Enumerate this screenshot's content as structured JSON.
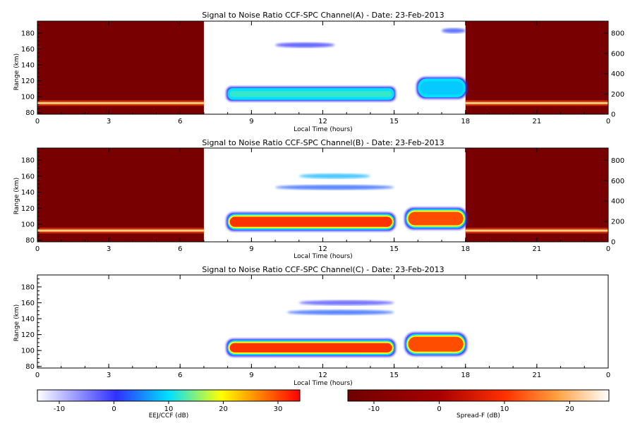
{
  "chart_data": [
    {
      "type": "heatmap",
      "title": "Signal to Noise Ratio CCF-SPC Channel(A) - Date: 23-Feb-2013",
      "xlabel": "Local Time (hours)",
      "ylabel": "Range (km)",
      "xlim": [
        0,
        24
      ],
      "ylim": [
        78,
        195
      ],
      "x_ticks": [
        "0",
        "3",
        "6",
        "9",
        "12",
        "15",
        "18",
        "21",
        "0"
      ],
      "y_ticks": [
        "80",
        "100",
        "120",
        "140",
        "160",
        "180"
      ],
      "right_ylim": [
        0,
        920
      ],
      "right_ticks": [
        "0",
        "200",
        "400",
        "600",
        "800"
      ],
      "spread_f_window_hours": [
        [
          0,
          7
        ],
        [
          18,
          24
        ]
      ],
      "eej_window_hours": [
        7,
        18
      ],
      "features": [
        {
          "kind": "spread-f-layer",
          "x": [
            0,
            7
          ],
          "range_km": 92,
          "db": 22
        },
        {
          "kind": "spread-f-layer",
          "x": [
            18,
            24
          ],
          "range_km": 92,
          "db": 18
        },
        {
          "kind": "eej-band",
          "x": [
            8,
            15
          ],
          "range_km": [
            97,
            110
          ],
          "db": 6
        },
        {
          "kind": "eej-band",
          "x": [
            16,
            18
          ],
          "range_km": [
            100,
            122
          ],
          "db": 3
        },
        {
          "kind": "echo-patch",
          "x": [
            10,
            12.5
          ],
          "range_km": 165,
          "db": -4
        },
        {
          "kind": "echo-patch",
          "x": [
            17,
            18
          ],
          "range_km": 183,
          "db": -3
        }
      ]
    },
    {
      "type": "heatmap",
      "title": "Signal to Noise Ratio CCF-SPC Channel(B) - Date: 23-Feb-2013",
      "xlabel": "Local Time (hours)",
      "ylabel": "Range (km)",
      "xlim": [
        0,
        24
      ],
      "ylim": [
        78,
        195
      ],
      "x_ticks": [
        "0",
        "3",
        "6",
        "9",
        "12",
        "15",
        "18",
        "21",
        "0"
      ],
      "y_ticks": [
        "80",
        "100",
        "120",
        "140",
        "160",
        "180"
      ],
      "right_ylim": [
        0,
        920
      ],
      "right_ticks": [
        "0",
        "200",
        "400",
        "600",
        "800"
      ],
      "spread_f_window_hours": [
        [
          0,
          7
        ],
        [
          18,
          24
        ]
      ],
      "eej_window_hours": [
        7,
        18
      ],
      "features": [
        {
          "kind": "spread-f-layer",
          "x": [
            0,
            7
          ],
          "range_km": 92,
          "db": 22
        },
        {
          "kind": "spread-f-layer",
          "x": [
            18,
            24
          ],
          "range_km": 92,
          "db": 18
        },
        {
          "kind": "eej-band",
          "x": [
            8,
            15
          ],
          "range_km": [
            94,
            112
          ],
          "db": 30
        },
        {
          "kind": "eej-band",
          "x": [
            15.5,
            18
          ],
          "range_km": [
            96,
            118
          ],
          "db": 28
        },
        {
          "kind": "echo-patch",
          "x": [
            11,
            14
          ],
          "range_km": 160,
          "db": 2
        },
        {
          "kind": "echo-patch",
          "x": [
            10,
            15
          ],
          "range_km": 146,
          "db": -2
        }
      ]
    },
    {
      "type": "heatmap",
      "title": "Signal to Noise Ratio CCF-SPC Channel(C) - Date: 23-Feb-2013",
      "xlabel": "Local Time (hours)",
      "ylabel": "Range (km)",
      "xlim": [
        0,
        24
      ],
      "ylim": [
        78,
        195
      ],
      "x_ticks": [
        "0",
        "3",
        "6",
        "9",
        "12",
        "15",
        "18",
        "21",
        "0"
      ],
      "y_ticks": [
        "80",
        "100",
        "120",
        "140",
        "160",
        "180"
      ],
      "eej_window_hours": [
        7,
        18
      ],
      "features": [
        {
          "kind": "eej-band",
          "x": [
            8,
            15
          ],
          "range_km": [
            95,
            112
          ],
          "db": 30
        },
        {
          "kind": "eej-band",
          "x": [
            15.5,
            18
          ],
          "range_km": [
            96,
            120
          ],
          "db": 28
        },
        {
          "kind": "echo-patch",
          "x": [
            10.5,
            15
          ],
          "range_km": 148,
          "db": -2
        },
        {
          "kind": "echo-patch",
          "x": [
            11,
            15
          ],
          "range_km": 160,
          "db": -5
        }
      ]
    }
  ],
  "colorbars": [
    {
      "label": "EEJ/CCF (dB)",
      "range": [
        -14,
        34
      ],
      "ticks": [
        "-10",
        "0",
        "10",
        "20",
        "30"
      ],
      "colors": [
        "#ffffff",
        "#3030ff",
        "#00e0ff",
        "#ffff00",
        "#ff0000"
      ]
    },
    {
      "label": "Spread-F (dB)",
      "range": [
        -14,
        26
      ],
      "ticks": [
        "-10",
        "0",
        "10",
        "20"
      ],
      "colors": [
        "#700000",
        "#a80000",
        "#ff3000",
        "#ffa040",
        "#ffffff"
      ]
    }
  ],
  "colors": {
    "spread_f_background": "#780000",
    "eej_core": "#ee2200"
  }
}
